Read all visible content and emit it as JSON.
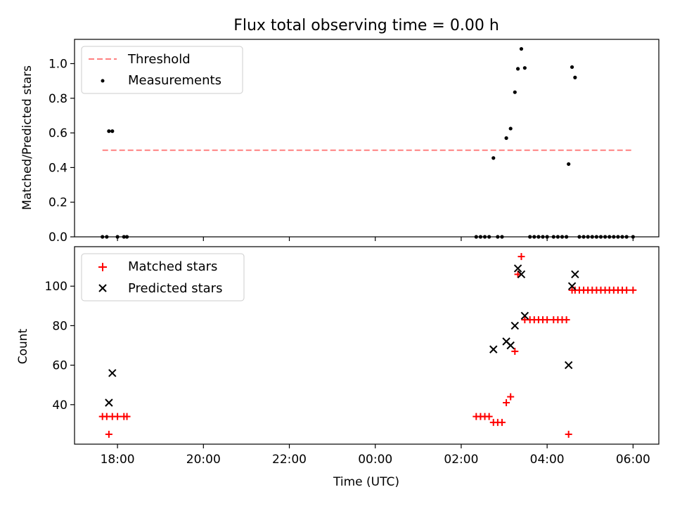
{
  "chart_data": [
    {
      "type": "scatter",
      "title": "Flux total observing time = 0.00 h",
      "xlabel": "",
      "ylabel": "Matched/Predicted stars",
      "xlim": [
        17.0,
        6.6
      ],
      "ylim": [
        0,
        1.14
      ],
      "yticks": [
        0.0,
        0.2,
        0.4,
        0.6,
        0.8,
        1.0
      ],
      "ytick_labels": [
        "0.0",
        "0.2",
        "0.4",
        "0.6",
        "0.8",
        "1.0"
      ],
      "legend_position": "upper-left",
      "threshold": {
        "name": "Threshold",
        "y": 0.5,
        "x_start": 17.65,
        "x_end": 6.0,
        "color": "#ff8080"
      },
      "series": [
        {
          "name": "Measurements",
          "color": "#000000",
          "marker": "dot",
          "points": [
            [
              17.65,
              0.0
            ],
            [
              17.75,
              0.0
            ],
            [
              17.8,
              0.61
            ],
            [
              17.88,
              0.61
            ],
            [
              18.0,
              0.0
            ],
            [
              18.15,
              0.0
            ],
            [
              18.22,
              0.0
            ],
            [
              2.35,
              0.0
            ],
            [
              2.45,
              0.0
            ],
            [
              2.55,
              0.0
            ],
            [
              2.65,
              0.0
            ],
            [
              2.75,
              0.455
            ],
            [
              2.85,
              0.0
            ],
            [
              2.95,
              0.0
            ],
            [
              3.05,
              0.57
            ],
            [
              3.15,
              0.625
            ],
            [
              3.25,
              0.835
            ],
            [
              3.32,
              0.97
            ],
            [
              3.4,
              1.085
            ],
            [
              3.48,
              0.975
            ],
            [
              3.6,
              0.0
            ],
            [
              3.7,
              0.0
            ],
            [
              3.8,
              0.0
            ],
            [
              3.9,
              0.0
            ],
            [
              4.0,
              0.0
            ],
            [
              4.15,
              0.0
            ],
            [
              4.25,
              0.0
            ],
            [
              4.35,
              0.0
            ],
            [
              4.45,
              0.0
            ],
            [
              4.5,
              0.42
            ],
            [
              4.58,
              0.98
            ],
            [
              4.65,
              0.92
            ],
            [
              4.75,
              0.0
            ],
            [
              4.85,
              0.0
            ],
            [
              4.95,
              0.0
            ],
            [
              5.05,
              0.0
            ],
            [
              5.15,
              0.0
            ],
            [
              5.25,
              0.0
            ],
            [
              5.35,
              0.0
            ],
            [
              5.45,
              0.0
            ],
            [
              5.55,
              0.0
            ],
            [
              5.65,
              0.0
            ],
            [
              5.75,
              0.0
            ],
            [
              5.85,
              0.0
            ],
            [
              6.0,
              0.0
            ]
          ]
        }
      ]
    },
    {
      "type": "scatter",
      "title": "",
      "xlabel": "Time (UTC)",
      "ylabel": "Count",
      "xlim": [
        17.0,
        6.6
      ],
      "ylim": [
        20,
        120
      ],
      "yticks": [
        40,
        60,
        80,
        100
      ],
      "ytick_labels": [
        "40",
        "60",
        "80",
        "100"
      ],
      "xticks": [
        18,
        20,
        22,
        0,
        2,
        4,
        6
      ],
      "xtick_labels": [
        "18:00",
        "20:00",
        "22:00",
        "00:00",
        "02:00",
        "04:00",
        "06:00"
      ],
      "legend_position": "upper-left",
      "series": [
        {
          "name": "Matched stars",
          "color": "#ff0000",
          "marker": "plus",
          "points": [
            [
              17.65,
              34
            ],
            [
              17.75,
              34
            ],
            [
              17.8,
              25
            ],
            [
              17.88,
              34
            ],
            [
              18.0,
              34
            ],
            [
              18.15,
              34
            ],
            [
              18.22,
              34
            ],
            [
              2.35,
              34
            ],
            [
              2.45,
              34
            ],
            [
              2.55,
              34
            ],
            [
              2.65,
              34
            ],
            [
              2.75,
              31
            ],
            [
              2.85,
              31
            ],
            [
              2.95,
              31
            ],
            [
              3.05,
              41
            ],
            [
              3.15,
              44
            ],
            [
              3.25,
              67
            ],
            [
              3.32,
              106
            ],
            [
              3.4,
              115
            ],
            [
              3.48,
              83
            ],
            [
              3.6,
              83
            ],
            [
              3.7,
              83
            ],
            [
              3.8,
              83
            ],
            [
              3.9,
              83
            ],
            [
              4.0,
              83
            ],
            [
              4.15,
              83
            ],
            [
              4.25,
              83
            ],
            [
              4.35,
              83
            ],
            [
              4.45,
              83
            ],
            [
              4.5,
              25
            ],
            [
              4.58,
              98
            ],
            [
              4.65,
              98
            ],
            [
              4.75,
              98
            ],
            [
              4.85,
              98
            ],
            [
              4.95,
              98
            ],
            [
              5.05,
              98
            ],
            [
              5.15,
              98
            ],
            [
              5.25,
              98
            ],
            [
              5.35,
              98
            ],
            [
              5.45,
              98
            ],
            [
              5.55,
              98
            ],
            [
              5.65,
              98
            ],
            [
              5.75,
              98
            ],
            [
              5.85,
              98
            ],
            [
              6.0,
              98
            ]
          ]
        },
        {
          "name": "Predicted stars",
          "color": "#000000",
          "marker": "x",
          "points": [
            [
              17.8,
              41
            ],
            [
              17.88,
              56
            ],
            [
              2.75,
              68
            ],
            [
              3.05,
              72
            ],
            [
              3.15,
              70
            ],
            [
              3.25,
              80
            ],
            [
              3.32,
              109
            ],
            [
              3.4,
              106
            ],
            [
              3.48,
              85
            ],
            [
              4.5,
              60
            ],
            [
              4.58,
              100
            ],
            [
              4.65,
              106
            ]
          ]
        }
      ]
    }
  ]
}
